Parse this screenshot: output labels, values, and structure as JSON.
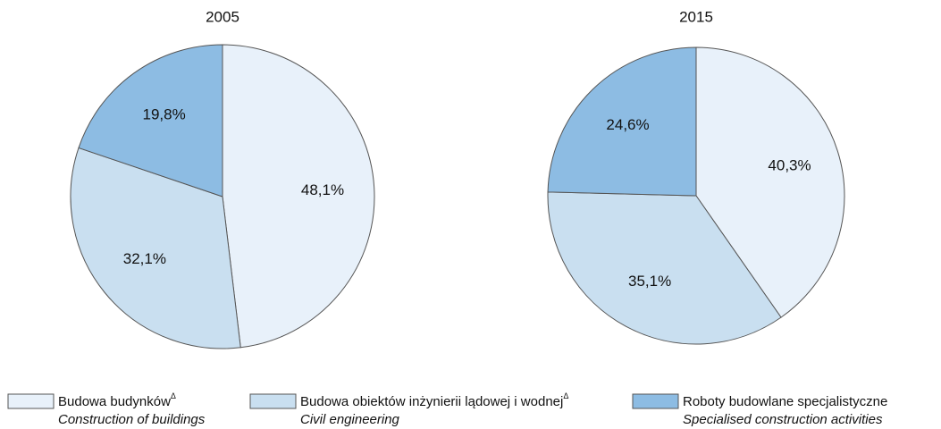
{
  "chart_data": [
    {
      "type": "pie",
      "title": "2005",
      "values": [
        48.1,
        32.1,
        19.8
      ],
      "value_labels": [
        "48,1%",
        "32,1%",
        "19,8%"
      ]
    },
    {
      "type": "pie",
      "title": "2015",
      "values": [
        40.3,
        35.1,
        24.6
      ],
      "value_labels": [
        "40,3%",
        "35,1%",
        "24,6%"
      ]
    }
  ],
  "legend": [
    {
      "label": "Budowa budynków",
      "mark": "Δ",
      "label_en": "Construction of buildings",
      "color": "#e8f1fa"
    },
    {
      "label": "Budowa obiektów inżynierii lądowej i wodnej",
      "mark": "Δ",
      "label_en": "Civil engineering",
      "color": "#c9dff0"
    },
    {
      "label": "Roboty budowlane specjalistyczne",
      "label_en": "Specialised construction activities",
      "color": "#8dbce3"
    }
  ]
}
